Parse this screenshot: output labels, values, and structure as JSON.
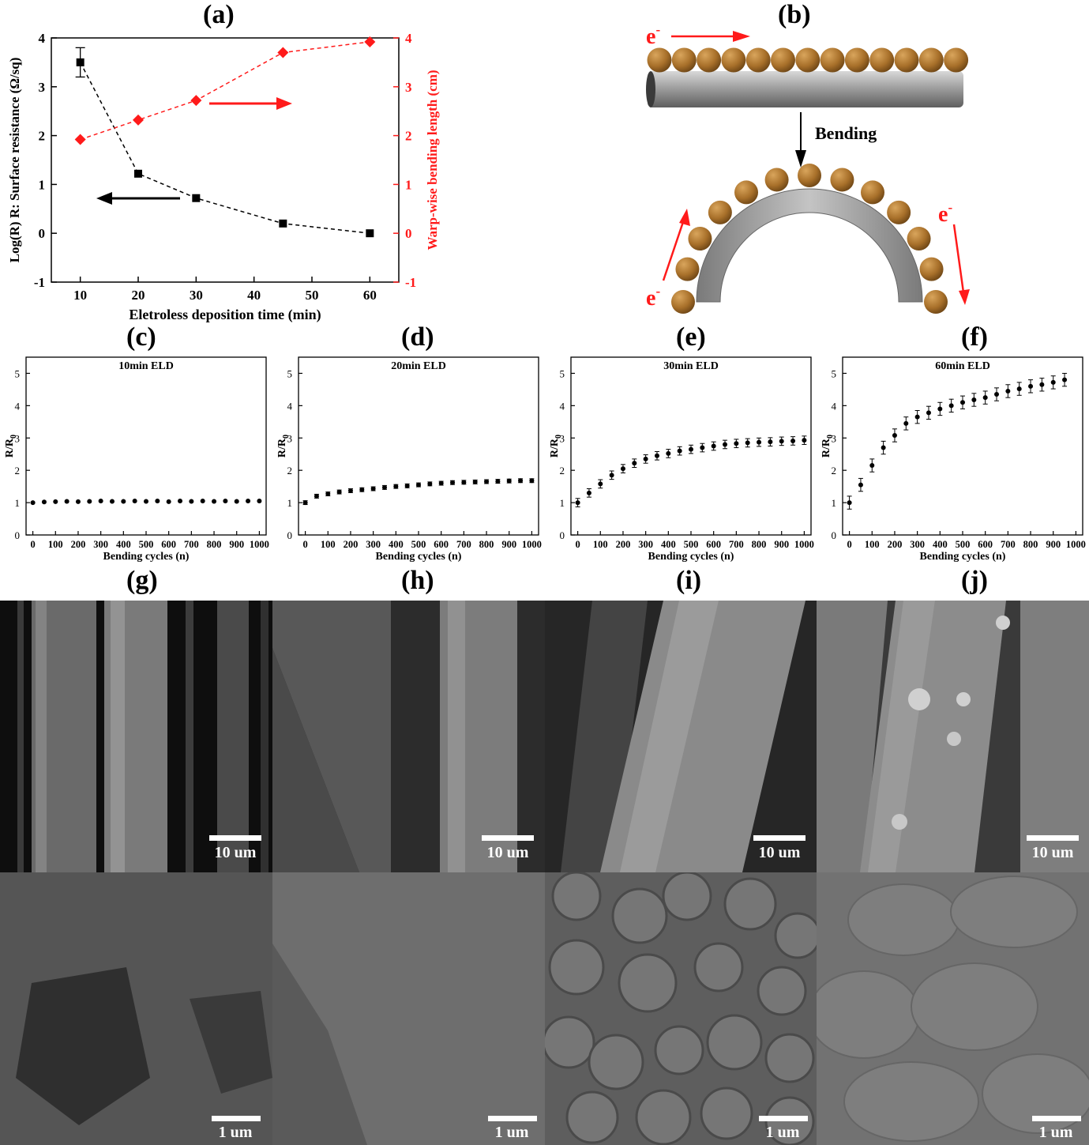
{
  "panel_labels": {
    "a": "(a)",
    "b": "(b)",
    "c": "(c)",
    "d": "(d)",
    "e": "(e)",
    "f": "(f)",
    "g": "(g)",
    "h": "(h)",
    "i": "(i)",
    "j": "(j)"
  },
  "schematic": {
    "electron": "e",
    "electron_sup": "-",
    "bending_label": "Bending",
    "colors": {
      "arrow": "#ff1a1a",
      "particle": "#a8702a",
      "fiber": "#9a9a9a"
    }
  },
  "sem": {
    "scale_top": "10 um",
    "scale_bottom": "1 um"
  },
  "chart_data": [
    {
      "type": "line",
      "id": "a",
      "xlabel": "Eletroless deposition time (min)",
      "ylabel_left": "Log(R) R: Surface resistance (Ω/sq)",
      "ylabel_right": "Warp-wise bending length (cm)",
      "xlim": [
        5,
        65
      ],
      "ylim": [
        -1,
        4
      ],
      "xticks": [
        10,
        20,
        30,
        40,
        50,
        60
      ],
      "yticks": [
        -1,
        0,
        1,
        2,
        3,
        4
      ],
      "series": [
        {
          "axis": "left",
          "color": "#000000",
          "marker": "square",
          "x": [
            10,
            20,
            30,
            45,
            60
          ],
          "y": [
            3.5,
            1.22,
            0.72,
            0.2,
            0.0
          ],
          "error": [
            0.3,
            0,
            0,
            0,
            0
          ]
        },
        {
          "axis": "right",
          "color": "#ff1a1a",
          "marker": "diamond",
          "x": [
            10,
            20,
            30,
            45,
            60
          ],
          "y": [
            1.92,
            2.32,
            2.72,
            3.7,
            3.92
          ]
        }
      ]
    },
    {
      "type": "scatter",
      "id": "c",
      "title": "10min ELD",
      "xlabel": "Bending cycles (n)",
      "ylabel": "R/R",
      "ylabel_sub": "0",
      "xlim": [
        -30,
        1030
      ],
      "ylim": [
        0,
        5.5
      ],
      "xticks": [
        0,
        100,
        200,
        300,
        400,
        500,
        600,
        700,
        800,
        900,
        1000
      ],
      "yticks": [
        0,
        1,
        2,
        3,
        4,
        5
      ],
      "x": [
        0,
        50,
        100,
        150,
        200,
        250,
        300,
        350,
        400,
        450,
        500,
        550,
        600,
        650,
        700,
        750,
        800,
        850,
        900,
        950,
        1000
      ],
      "y": [
        1.0,
        1.02,
        1.03,
        1.04,
        1.03,
        1.04,
        1.05,
        1.04,
        1.04,
        1.05,
        1.04,
        1.05,
        1.03,
        1.05,
        1.04,
        1.05,
        1.04,
        1.05,
        1.04,
        1.05,
        1.05
      ],
      "error": [
        0.02,
        0.02,
        0.02,
        0.02,
        0.02,
        0.02,
        0.02,
        0.02,
        0.02,
        0.02,
        0.02,
        0.02,
        0.02,
        0.02,
        0.02,
        0.02,
        0.02,
        0.02,
        0.02,
        0.02,
        0.02
      ]
    },
    {
      "type": "scatter",
      "id": "d",
      "title": "20min ELD",
      "xlabel": "Bending cycles (n)",
      "ylabel": "R/R",
      "ylabel_sub": "0",
      "xlim": [
        -30,
        1030
      ],
      "ylim": [
        0,
        5.5
      ],
      "xticks": [
        0,
        100,
        200,
        300,
        400,
        500,
        600,
        700,
        800,
        900,
        1000
      ],
      "yticks": [
        0,
        1,
        2,
        3,
        4,
        5
      ],
      "x": [
        0,
        50,
        100,
        150,
        200,
        250,
        300,
        350,
        400,
        450,
        500,
        550,
        600,
        650,
        700,
        750,
        800,
        850,
        900,
        950,
        1000
      ],
      "y": [
        1.0,
        1.2,
        1.27,
        1.33,
        1.37,
        1.4,
        1.43,
        1.47,
        1.5,
        1.52,
        1.55,
        1.58,
        1.6,
        1.62,
        1.63,
        1.64,
        1.65,
        1.66,
        1.67,
        1.68,
        1.68
      ],
      "error": [
        0.06,
        0.06,
        0.06,
        0.06,
        0.06,
        0.06,
        0.06,
        0.06,
        0.06,
        0.06,
        0.06,
        0.06,
        0.06,
        0.06,
        0.06,
        0.06,
        0.06,
        0.06,
        0.06,
        0.06,
        0.06
      ]
    },
    {
      "type": "scatter",
      "id": "e",
      "title": "30min ELD",
      "xlabel": "Bending cycles (n)",
      "ylabel": "R/R",
      "ylabel_sub": "0",
      "xlim": [
        -30,
        1030
      ],
      "ylim": [
        0,
        5.5
      ],
      "xticks": [
        0,
        100,
        200,
        300,
        400,
        500,
        600,
        700,
        800,
        900,
        1000
      ],
      "yticks": [
        0,
        1,
        2,
        3,
        4,
        5
      ],
      "x": [
        0,
        50,
        100,
        150,
        200,
        250,
        300,
        350,
        400,
        450,
        500,
        550,
        600,
        650,
        700,
        750,
        800,
        850,
        900,
        950,
        1000
      ],
      "y": [
        1.0,
        1.3,
        1.58,
        1.85,
        2.05,
        2.22,
        2.35,
        2.45,
        2.52,
        2.6,
        2.65,
        2.7,
        2.75,
        2.8,
        2.83,
        2.85,
        2.87,
        2.88,
        2.9,
        2.91,
        2.93
      ],
      "error": [
        0.13,
        0.13,
        0.13,
        0.13,
        0.13,
        0.13,
        0.13,
        0.13,
        0.13,
        0.13,
        0.13,
        0.13,
        0.13,
        0.13,
        0.13,
        0.13,
        0.13,
        0.13,
        0.13,
        0.13,
        0.13
      ]
    },
    {
      "type": "scatter",
      "id": "f",
      "title": "60min ELD",
      "xlabel": "Bending cycles (n)",
      "ylabel": "R/R",
      "ylabel_sub": "0",
      "xlim": [
        -30,
        1030
      ],
      "ylim": [
        0,
        5.5
      ],
      "xticks": [
        0,
        100,
        200,
        300,
        400,
        500,
        600,
        700,
        800,
        900,
        1000
      ],
      "yticks": [
        0,
        1,
        2,
        3,
        4,
        5
      ],
      "x": [
        0,
        50,
        100,
        150,
        200,
        250,
        300,
        350,
        400,
        450,
        500,
        550,
        600,
        650,
        700,
        750,
        800,
        850,
        900,
        950
      ],
      "y": [
        1.0,
        1.55,
        2.15,
        2.7,
        3.08,
        3.45,
        3.65,
        3.78,
        3.9,
        4.0,
        4.1,
        4.18,
        4.25,
        4.35,
        4.45,
        4.52,
        4.6,
        4.65,
        4.72,
        4.8
      ],
      "error": [
        0.2,
        0.2,
        0.2,
        0.2,
        0.2,
        0.2,
        0.2,
        0.2,
        0.2,
        0.2,
        0.2,
        0.2,
        0.2,
        0.2,
        0.2,
        0.2,
        0.2,
        0.2,
        0.2,
        0.2
      ]
    }
  ]
}
